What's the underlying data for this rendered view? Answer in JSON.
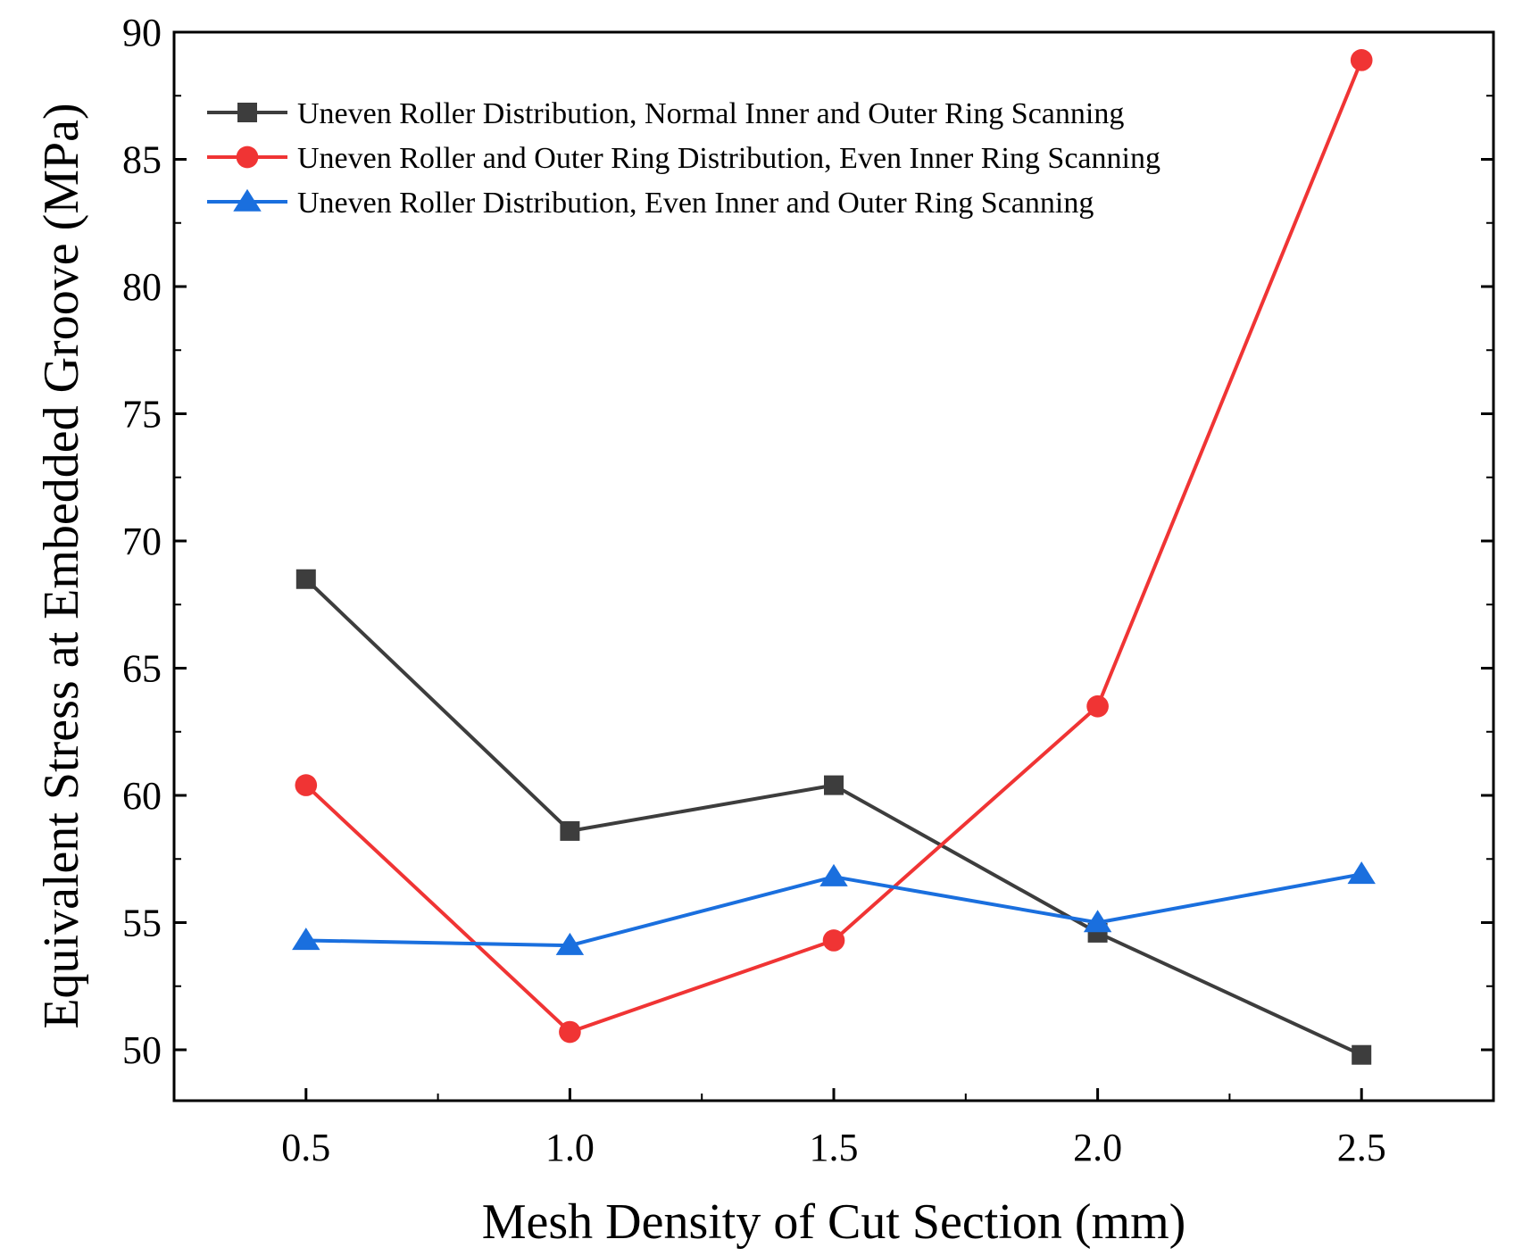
{
  "chart_data": {
    "type": "line",
    "title": "",
    "xlabel": "Mesh Density of Cut Section (mm)",
    "ylabel": "Equivalent Stress at Embedded Groove (MPa)",
    "x": [
      0.5,
      1.0,
      1.5,
      2.0,
      2.5
    ],
    "x_tick_labels": [
      "0.5",
      "1.0",
      "1.5",
      "2.0",
      "2.5"
    ],
    "y_ticks": [
      50,
      55,
      60,
      65,
      70,
      75,
      80,
      85,
      90
    ],
    "xlim": [
      0.25,
      2.75
    ],
    "ylim": [
      48,
      90
    ],
    "grid": false,
    "legend_position": "top-left",
    "series": [
      {
        "name": "Uneven Roller Distribution, Normal Inner and Outer Ring Scanning",
        "color": "#3d3d3d",
        "marker": "square",
        "values": [
          68.5,
          58.6,
          60.4,
          54.6,
          49.8
        ]
      },
      {
        "name": "Uneven Roller and Outer Ring Distribution, Even Inner Ring Scanning",
        "color": "#f03434",
        "marker": "circle",
        "values": [
          60.4,
          50.7,
          54.3,
          63.5,
          88.9
        ]
      },
      {
        "name": "Uneven Roller Distribution, Even Inner and Outer Ring Scanning",
        "color": "#1a6fde",
        "marker": "triangle",
        "values": [
          54.3,
          54.1,
          56.8,
          55.0,
          56.9
        ]
      }
    ]
  }
}
